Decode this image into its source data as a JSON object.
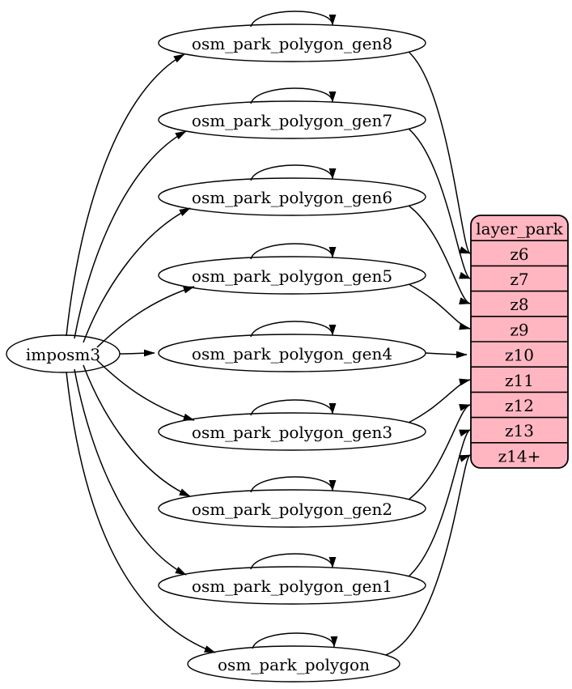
{
  "diagram": {
    "type": "etl-dependency-graph",
    "background": "#ffffff",
    "node_fill": "#ffffff",
    "stroke": "#000000",
    "source": {
      "label": "imposm3"
    },
    "generalized_tables": [
      {
        "label": "osm_park_polygon_gen8",
        "maps_to": "z6"
      },
      {
        "label": "osm_park_polygon_gen7",
        "maps_to": "z7"
      },
      {
        "label": "osm_park_polygon_gen6",
        "maps_to": "z8"
      },
      {
        "label": "osm_park_polygon_gen5",
        "maps_to": "z9"
      },
      {
        "label": "osm_park_polygon_gen4",
        "maps_to": "z10"
      },
      {
        "label": "osm_park_polygon_gen3",
        "maps_to": "z11"
      },
      {
        "label": "osm_park_polygon_gen2",
        "maps_to": "z12"
      },
      {
        "label": "osm_park_polygon_gen1",
        "maps_to": "z13"
      },
      {
        "label": "osm_park_polygon",
        "maps_to": "z14+"
      }
    ],
    "layer_table": {
      "title": "layer_park",
      "rows": [
        "z6",
        "z7",
        "z8",
        "z9",
        "z10",
        "z11",
        "z12",
        "z13",
        "z14+"
      ],
      "fill": "#FFB6C1",
      "border": "#000000"
    },
    "edges": [
      {
        "from": "imposm3",
        "to": "osm_park_polygon_gen8"
      },
      {
        "from": "imposm3",
        "to": "osm_park_polygon_gen7"
      },
      {
        "from": "imposm3",
        "to": "osm_park_polygon_gen6"
      },
      {
        "from": "imposm3",
        "to": "osm_park_polygon_gen5"
      },
      {
        "from": "imposm3",
        "to": "osm_park_polygon_gen4"
      },
      {
        "from": "imposm3",
        "to": "osm_park_polygon_gen3"
      },
      {
        "from": "imposm3",
        "to": "osm_park_polygon_gen2"
      },
      {
        "from": "imposm3",
        "to": "osm_park_polygon_gen1"
      },
      {
        "from": "imposm3",
        "to": "osm_park_polygon"
      },
      {
        "from": "osm_park_polygon_gen8",
        "to": "osm_park_polygon_gen8"
      },
      {
        "from": "osm_park_polygon_gen7",
        "to": "osm_park_polygon_gen7"
      },
      {
        "from": "osm_park_polygon_gen6",
        "to": "osm_park_polygon_gen6"
      },
      {
        "from": "osm_park_polygon_gen5",
        "to": "osm_park_polygon_gen5"
      },
      {
        "from": "osm_park_polygon_gen4",
        "to": "osm_park_polygon_gen4"
      },
      {
        "from": "osm_park_polygon_gen3",
        "to": "osm_park_polygon_gen3"
      },
      {
        "from": "osm_park_polygon_gen2",
        "to": "osm_park_polygon_gen2"
      },
      {
        "from": "osm_park_polygon_gen1",
        "to": "osm_park_polygon_gen1"
      },
      {
        "from": "osm_park_polygon",
        "to": "osm_park_polygon"
      },
      {
        "from": "osm_park_polygon_gen8",
        "to": "layer_park:z6"
      },
      {
        "from": "osm_park_polygon_gen7",
        "to": "layer_park:z7"
      },
      {
        "from": "osm_park_polygon_gen6",
        "to": "layer_park:z8"
      },
      {
        "from": "osm_park_polygon_gen5",
        "to": "layer_park:z9"
      },
      {
        "from": "osm_park_polygon_gen4",
        "to": "layer_park:z10"
      },
      {
        "from": "osm_park_polygon_gen3",
        "to": "layer_park:z11"
      },
      {
        "from": "osm_park_polygon_gen2",
        "to": "layer_park:z12"
      },
      {
        "from": "osm_park_polygon_gen1",
        "to": "layer_park:z13"
      },
      {
        "from": "osm_park_polygon",
        "to": "layer_park:z14+"
      }
    ]
  }
}
